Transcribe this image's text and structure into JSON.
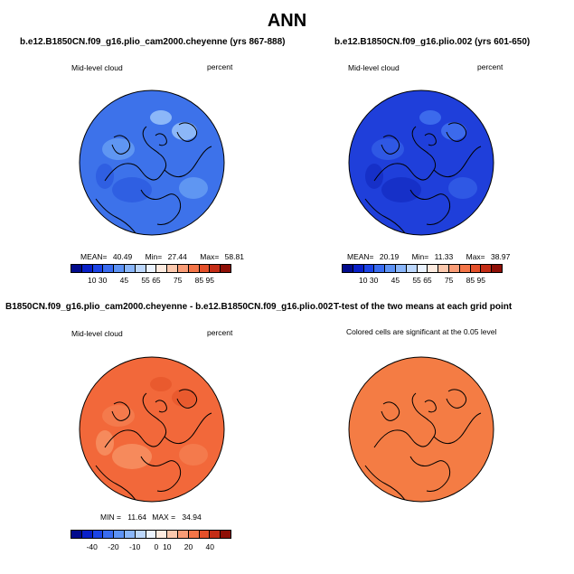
{
  "main_title": "ANN",
  "panels": [
    {
      "title": "b.e12.B1850CN.f09_g16.plio_cam2000.cheyenne (yrs 867-888)",
      "left_label": "Mid-level cloud",
      "right_label": "percent",
      "stats": [
        "MEAN=",
        "40.49",
        "Min=",
        "27.44",
        "Max=",
        "58.81"
      ],
      "palette": [
        "#020b8c",
        "#0920c8",
        "#1c44e6",
        "#3a6cf0",
        "#5e93f5",
        "#8ab6fa",
        "#bcd7fc",
        "#ebf3fe",
        "#fdebe0",
        "#fbc8ad",
        "#f99c76",
        "#f47548",
        "#e4502a",
        "#c42d16",
        "#8e0f06"
      ],
      "ticks": [
        "10",
        "30",
        "45",
        "55",
        "65",
        "75",
        "85",
        "95"
      ],
      "fill": "#3d72ea",
      "patches": [
        "#5f96f2",
        "#8cb7f8",
        "#2f5fe2"
      ]
    },
    {
      "title": "b.e12.B1850CN.f09_g16.plio.002 (yrs 601-650)",
      "left_label": "Mid-level cloud",
      "right_label": "percent",
      "stats": [
        "MEAN=",
        "20.19",
        "Min=",
        "11.33",
        "Max=",
        "38.97"
      ],
      "palette": [
        "#020b8c",
        "#0920c8",
        "#1c44e6",
        "#3a6cf0",
        "#5e93f5",
        "#8ab6fa",
        "#bcd7fc",
        "#ebf3fe",
        "#fdebe0",
        "#fbc8ad",
        "#f99c76",
        "#f47548",
        "#e4502a",
        "#c42d16",
        "#8e0f06"
      ],
      "ticks": [
        "10",
        "30",
        "45",
        "55",
        "65",
        "75",
        "85",
        "95"
      ],
      "fill": "#1f3fda",
      "patches": [
        "#2f58e4",
        "#3c6aec",
        "#1630c8"
      ]
    },
    {
      "title": "B1850CN.f09_g16.plio_cam2000.cheyenne - b.e12.B1850CN.f09_g16.plio.002",
      "left_label": "Mid-level cloud",
      "right_label": "percent",
      "stats": [
        "MIN =",
        "11.64",
        "MAX =",
        "34.94"
      ],
      "palette": [
        "#020b8c",
        "#0920c8",
        "#1c44e6",
        "#3a6cf0",
        "#5e93f5",
        "#8ab6fa",
        "#bcd7fc",
        "#ebf3fe",
        "#fdebe0",
        "#fbc8ad",
        "#f99c76",
        "#f47548",
        "#e4502a",
        "#c42d16",
        "#8e0f06"
      ],
      "ticks": [
        "-40",
        "-20",
        "-10",
        "0",
        "10",
        "20",
        "40"
      ],
      "fill": "#f2683a",
      "patches": [
        "#f47a4c",
        "#e95a2e",
        "#f68a5c"
      ]
    },
    {
      "title": "T-test of the two means at each grid point",
      "left_label": "Colored cells are significant at the 0.05 level",
      "fill": "#f47c44"
    }
  ]
}
